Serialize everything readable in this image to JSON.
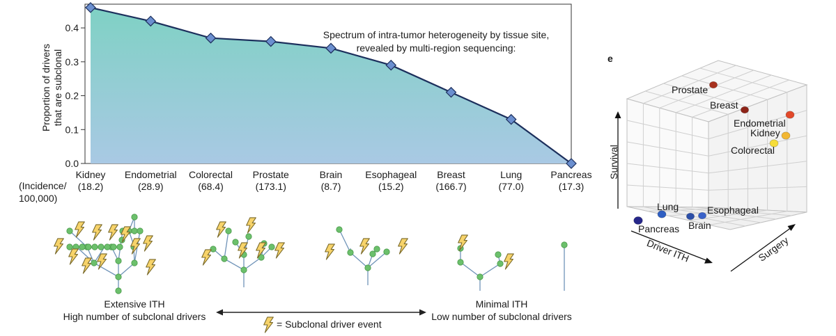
{
  "chart_data": [
    {
      "type": "area",
      "title": "Spectrum of intra-tumor heterogeneity by tissue site,",
      "subtitle": "revealed by multi-region sequencing:",
      "ylabel_lines": [
        "Proportion of drivers",
        "that are subclonal"
      ],
      "ylim": [
        0.0,
        0.47
      ],
      "yticks": [
        0.0,
        0.1,
        0.2,
        0.3,
        0.4
      ],
      "ytick_labels": [
        "0.0",
        "0.1",
        "0.2",
        "0.3",
        "0.4"
      ],
      "categories": [
        "Kidney",
        "Endometrial",
        "Colorectal",
        "Prostate",
        "Brain",
        "Esophageal",
        "Breast",
        "Lung",
        "Pancreas"
      ],
      "incidence": [
        "(18.2)",
        "(28.9)",
        "(68.4)",
        "(173.1)",
        "(8.7)",
        "(15.2)",
        "(166.7)",
        "(77.0)",
        "(17.3)"
      ],
      "incidence_label_lines": [
        "(Incidence/",
        "100,000)"
      ],
      "values": [
        0.46,
        0.42,
        0.37,
        0.36,
        0.34,
        0.29,
        0.21,
        0.13,
        0.0
      ],
      "colors": {
        "fill_top": "#7fd1c4",
        "fill_bottom": "#a9c9e4",
        "line": "#1c2f5c",
        "marker": "#6b8fcf"
      }
    },
    {
      "type": "scatter",
      "panel_label": "e",
      "axes": {
        "x": "Driver ITH",
        "y": "Survival",
        "z": "Surgery"
      },
      "points": [
        {
          "name": "Prostate",
          "driver_ith": 0.36,
          "survival": 0.92,
          "surgery": 0.3,
          "color": "#a8321f"
        },
        {
          "name": "Breast",
          "driver_ith": 0.21,
          "survival": 0.85,
          "surgery": 0.45,
          "color": "#8e2418"
        },
        {
          "name": "Endometrial",
          "driver_ith": 0.42,
          "survival": 0.8,
          "surgery": 0.9,
          "color": "#e2492a"
        },
        {
          "name": "Kidney",
          "driver_ith": 0.46,
          "survival": 0.72,
          "surgery": 0.8,
          "color": "#f2b733"
        },
        {
          "name": "Colorectal",
          "driver_ith": 0.37,
          "survival": 0.65,
          "surgery": 0.7,
          "color": "#f6dd3b"
        },
        {
          "name": "Lung",
          "driver_ith": 0.13,
          "survival": 0.15,
          "surgery": 0.25,
          "color": "#2f5fc2"
        },
        {
          "name": "Esophageal",
          "driver_ith": 0.29,
          "survival": 0.12,
          "surgery": 0.45,
          "color": "#3a62c9"
        },
        {
          "name": "Brain",
          "driver_ith": 0.34,
          "survival": 0.1,
          "surgery": 0.35,
          "color": "#2c4fa8"
        },
        {
          "name": "Pancreas",
          "driver_ith": 0.0,
          "survival": 0.05,
          "surgery": 0.1,
          "color": "#26278a"
        }
      ]
    }
  ],
  "illustration": {
    "left_caption": {
      "title": "Extensive ITH",
      "subtitle": "High number of subclonal drivers"
    },
    "right_caption": {
      "title": "Minimal ITH",
      "subtitle": "Low number of subclonal drivers"
    },
    "legend_text": "= Subclonal driver event",
    "colors": {
      "node": "#6cc06c",
      "edge": "#6f93b8",
      "bolt_fill": "#f7d36a",
      "bolt_stroke": "#7a6a2a"
    }
  }
}
